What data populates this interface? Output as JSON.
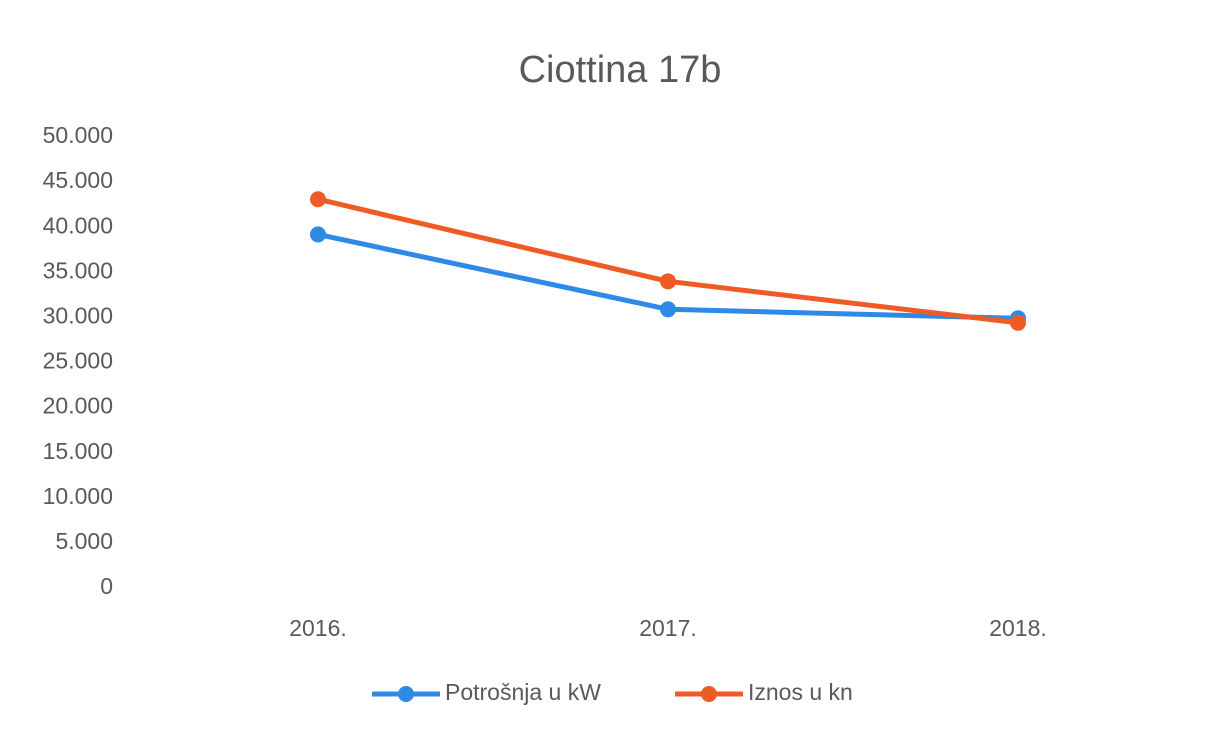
{
  "chart_data": {
    "type": "line",
    "title": "Ciottina 17b",
    "categories": [
      "2016.",
      "2017.",
      "2018."
    ],
    "series": [
      {
        "name": "Potrošnja u kW",
        "color": "#2e8ae6",
        "values": [
          39200,
          30900,
          29900
        ]
      },
      {
        "name": "Iznos u kn",
        "color": "#ef5b25",
        "values": [
          43100,
          34000,
          29400
        ]
      }
    ],
    "ylim": [
      0,
      50000
    ],
    "yticks": [
      0,
      {
        "value": 5000,
        "label": "5.000"
      },
      {
        "value": 10000,
        "label": "10.000"
      },
      {
        "value": 15000,
        "label": "15.000"
      },
      {
        "value": 20000,
        "label": "20.000"
      },
      {
        "value": 25000,
        "label": "25.000"
      },
      {
        "value": 30000,
        "label": "30.000"
      },
      {
        "value": 35000,
        "label": "35.000"
      },
      {
        "value": 40000,
        "label": "40.000"
      },
      {
        "value": 45000,
        "label": "45.000"
      },
      {
        "value": 50000,
        "label": "50.000"
      }
    ],
    "grid": false,
    "legend": "bottom"
  }
}
